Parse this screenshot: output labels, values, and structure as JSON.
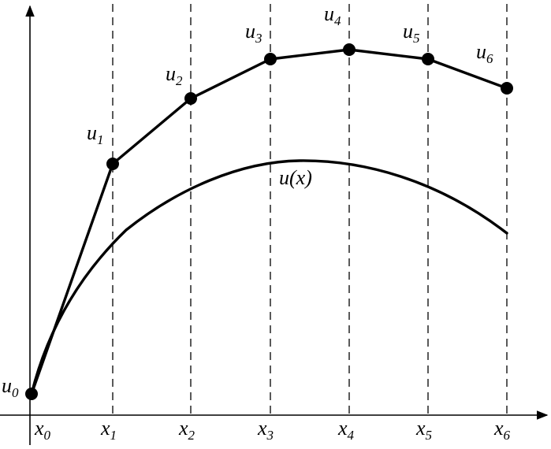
{
  "figure": {
    "curve_label": {
      "base": "u(",
      "var": "x",
      "close": ")"
    },
    "x_labels": [
      {
        "base": "x",
        "sub": "0"
      },
      {
        "base": "x",
        "sub": "1"
      },
      {
        "base": "x",
        "sub": "2"
      },
      {
        "base": "x",
        "sub": "3"
      },
      {
        "base": "x",
        "sub": "4"
      },
      {
        "base": "x",
        "sub": "5"
      },
      {
        "base": "x",
        "sub": "6"
      }
    ],
    "u_labels": [
      {
        "base": "u",
        "sub": "0"
      },
      {
        "base": "u",
        "sub": "1"
      },
      {
        "base": "u",
        "sub": "2"
      },
      {
        "base": "u",
        "sub": "3"
      },
      {
        "base": "u",
        "sub": "4"
      },
      {
        "base": "u",
        "sub": "5"
      },
      {
        "base": "u",
        "sub": "6"
      }
    ]
  }
}
